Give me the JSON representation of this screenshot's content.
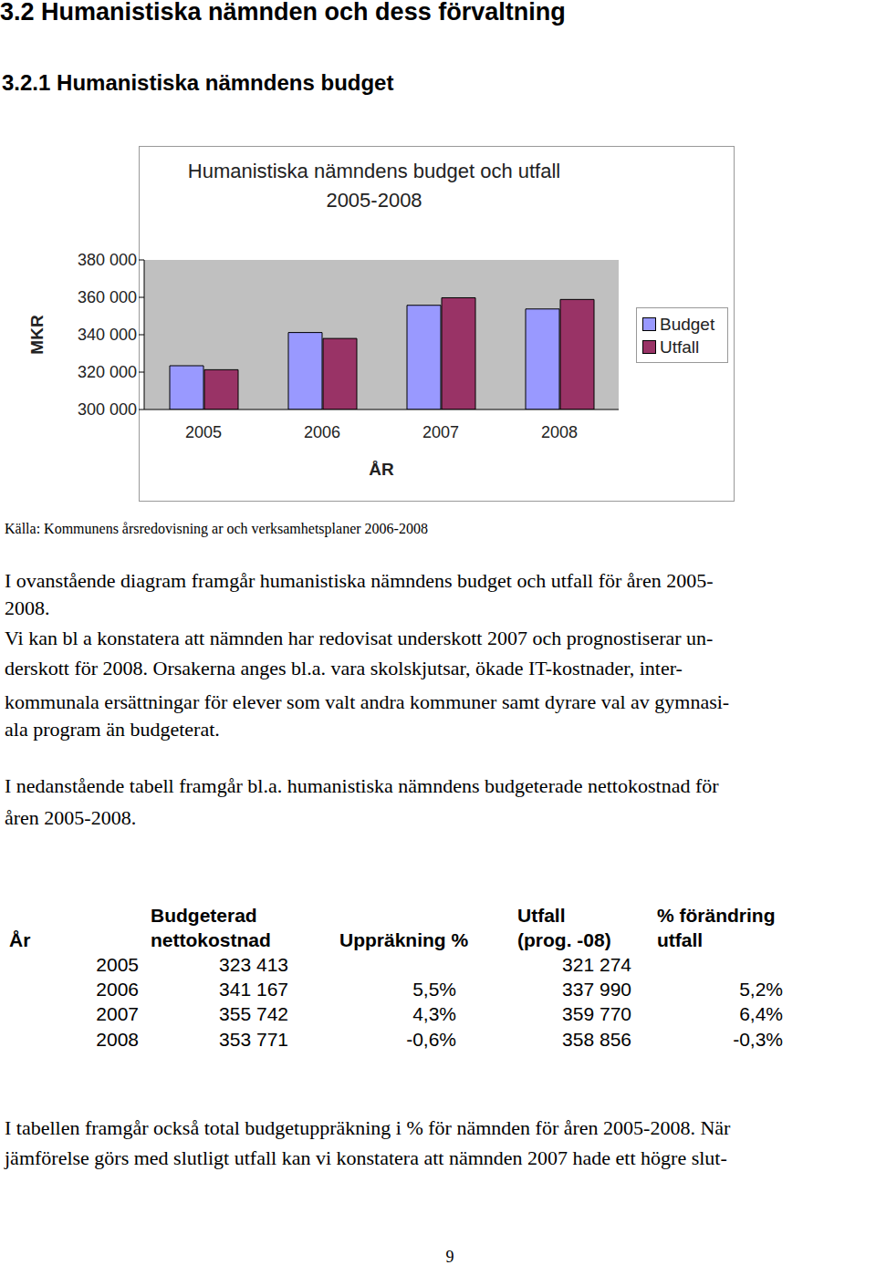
{
  "section": {
    "number": "3.2",
    "title": "Humanistiska nämnden och dess förvaltning"
  },
  "subsection": {
    "number": "3.2.1",
    "title": "Humanistiska nämndens budget"
  },
  "chart_data": {
    "type": "bar",
    "title": "Humanistiska nämndens budget och utfall 2005-2008",
    "x_label": "ÅR",
    "y_label": "MKR",
    "categories": [
      "2005",
      "2006",
      "2007",
      "2008"
    ],
    "series": [
      {
        "name": "Budget",
        "color": "#9999ff",
        "values": [
          323413,
          341167,
          355742,
          353771
        ]
      },
      {
        "name": "Utfall",
        "color": "#993366",
        "values": [
          321274,
          337990,
          359770,
          358856
        ]
      }
    ],
    "ylim": [
      300000,
      380000
    ],
    "yticks": [
      {
        "value": 300000,
        "label": "300 000"
      },
      {
        "value": 320000,
        "label": "320 000"
      },
      {
        "value": 340000,
        "label": "340 000"
      },
      {
        "value": 360000,
        "label": "360 000"
      },
      {
        "value": 380000,
        "label": "380 000"
      }
    ],
    "grid": false,
    "legend": "right"
  },
  "source": "Källa: Kommunens årsredovisning ar och verksamhetsplaner 2006-2008",
  "paragraphs": [
    [
      "I ovanstående diagram framgår humanistiska nämndens budget och utfall för åren 2005-",
      "2008."
    ],
    [
      "Vi kan bl a konstatera att nämnden har redovisat underskott 2007 och prognostiserar un-",
      "derskott för 2008. Orsakerna anges bl.a. vara skolskjutsar, ökade IT-kostnader, inter-",
      "kommunala ersättningar för elever som valt andra kommuner samt dyrare val av gymnasi-",
      "ala program än budgeterat."
    ],
    [
      "I nedanstående tabell framgår bl.a. humanistiska nämndens budgeterade nettokostnad för",
      "åren 2005-2008."
    ]
  ],
  "table": {
    "header": [
      [
        null,
        "År"
      ],
      [
        "Budgeterad",
        "nettokostnad"
      ],
      [
        null,
        "Uppräkning %"
      ],
      [
        "Utfall",
        "(prog. -08)"
      ],
      [
        "% förändring",
        "utfall"
      ]
    ],
    "rows": [
      [
        "2005",
        "323 413",
        null,
        "321 274",
        null
      ],
      [
        "2006",
        "341 167",
        "5,5%",
        "337 990",
        "5,2%"
      ],
      [
        "2007",
        "355 742",
        "4,3%",
        "359 770",
        "6,4%"
      ],
      [
        "2008",
        "353 771",
        "-0,6%",
        "358 856",
        "-0,3%"
      ]
    ]
  },
  "closing": [
    "I tabellen framgår också total budgetuppräkning i % för nämnden för åren 2005-2008. När",
    "jämförelse görs med slutligt utfall kan vi konstatera att nämnden 2007 hade ett högre slut-"
  ],
  "page_number": "9"
}
